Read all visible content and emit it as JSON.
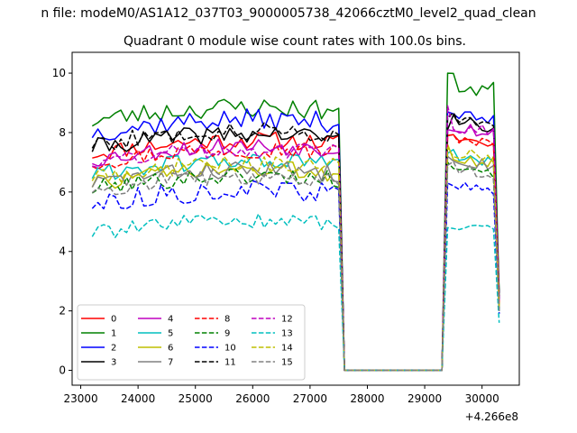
{
  "suptitle": "n file: modeM0/AS1A12_037T03_9000005738_42066cztM0_level2_quad_clean",
  "chart_data": {
    "type": "line",
    "title": "Quadrant 0 module wise count rates with 100.0s bins.",
    "xlabel": "",
    "ylabel": "",
    "x_offset_label": "+4.266e8",
    "xlim": [
      22850,
      30650
    ],
    "ylim": [
      -0.5,
      10.7
    ],
    "x_ticks": [
      23000,
      24000,
      25000,
      26000,
      27000,
      28000,
      29000,
      30000
    ],
    "x_tick_labels": [
      "23000",
      "24000",
      "25000",
      "26000",
      "27000",
      "28000",
      "29000",
      "30000"
    ],
    "y_ticks": [
      0,
      2,
      4,
      6,
      8,
      10
    ],
    "y_tick_labels": [
      "0",
      "2",
      "4",
      "6",
      "8",
      "10"
    ],
    "grid": false,
    "legend": {
      "placement": "lower-left",
      "columns": 4
    },
    "segments": {
      "x1_start": 23200,
      "x1_end": 27500,
      "x1_step": 100,
      "gap_x": [
        27600,
        27700,
        27800,
        27900,
        28000,
        28100,
        28200,
        28300,
        28400,
        28500,
        28600,
        28700,
        28800,
        28900,
        29000,
        29100,
        29200,
        29300
      ],
      "x2_start": 29400,
      "x2_end": 30300,
      "x2_step": 100,
      "gap_value": 0
    },
    "series": [
      {
        "name": "0",
        "color": "#ff0000",
        "dash": "solid",
        "level1": 7.3,
        "amp1": 0.3,
        "level2": 7.9,
        "amp2": 0.15,
        "peak_first": 7.9,
        "peak_last": 2.2,
        "seed": 11
      },
      {
        "name": "1",
        "color": "#008000",
        "dash": "solid",
        "level1": 8.4,
        "amp1": 0.35,
        "level2": 9.7,
        "amp2": 0.35,
        "peak_first": 10.0,
        "peak_last": 2.5,
        "seed": 23
      },
      {
        "name": "2",
        "color": "#0000ff",
        "dash": "solid",
        "level1": 8.0,
        "amp1": 0.35,
        "level2": 8.7,
        "amp2": 0.2,
        "peak_first": 8.7,
        "peak_last": 2.0,
        "seed": 37
      },
      {
        "name": "3",
        "color": "#000000",
        "dash": "solid",
        "level1": 7.5,
        "amp1": 0.3,
        "level2": 8.5,
        "amp2": 0.2,
        "peak_first": 8.1,
        "peak_last": 2.6,
        "seed": 41
      },
      {
        "name": "4",
        "color": "#bf00bf",
        "dash": "solid",
        "level1": 7.1,
        "amp1": 0.3,
        "level2": 8.3,
        "amp2": 0.25,
        "peak_first": 8.1,
        "peak_last": 2.3,
        "seed": 53
      },
      {
        "name": "5",
        "color": "#00bfbf",
        "dash": "solid",
        "level1": 6.6,
        "amp1": 0.3,
        "level2": 7.3,
        "amp2": 0.2,
        "peak_first": 7.3,
        "peak_last": 2.0,
        "seed": 61
      },
      {
        "name": "6",
        "color": "#bfbf00",
        "dash": "solid",
        "level1": 6.3,
        "amp1": 0.3,
        "level2": 7.3,
        "amp2": 0.25,
        "peak_first": 7.6,
        "peak_last": 2.2,
        "seed": 73
      },
      {
        "name": "7",
        "color": "#808080",
        "dash": "solid",
        "level1": 6.3,
        "amp1": 0.3,
        "level2": 7.2,
        "amp2": 0.2,
        "peak_first": 7.2,
        "peak_last": 2.1,
        "seed": 83
      },
      {
        "name": "8",
        "color": "#ff0000",
        "dash": "dashed",
        "level1": 7.0,
        "amp1": 0.3,
        "level2": 7.9,
        "amp2": 0.2,
        "peak_first": 7.9,
        "peak_last": 2.2,
        "seed": 97
      },
      {
        "name": "9",
        "color": "#008000",
        "dash": "dashed",
        "level1": 6.1,
        "amp1": 0.3,
        "level2": 7.0,
        "amp2": 0.2,
        "peak_first": 7.0,
        "peak_last": 2.0,
        "seed": 101
      },
      {
        "name": "10",
        "color": "#0000ff",
        "dash": "dashed",
        "level1": 5.6,
        "amp1": 0.35,
        "level2": 6.3,
        "amp2": 0.15,
        "peak_first": 6.3,
        "peak_last": 1.9,
        "seed": 113
      },
      {
        "name": "11",
        "color": "#000000",
        "dash": "dashed",
        "level1": 7.6,
        "amp1": 0.3,
        "level2": 8.6,
        "amp2": 0.2,
        "peak_first": 8.5,
        "peak_last": 2.4,
        "seed": 127
      },
      {
        "name": "12",
        "color": "#bf00bf",
        "dash": "dashed",
        "level1": 7.0,
        "amp1": 0.3,
        "level2": 8.3,
        "amp2": 0.25,
        "peak_first": 8.9,
        "peak_last": 2.3,
        "seed": 131
      },
      {
        "name": "13",
        "color": "#00bfbf",
        "dash": "dashed",
        "level1": 4.6,
        "amp1": 0.25,
        "level2": 5.0,
        "amp2": 0.2,
        "peak_first": 4.8,
        "peak_last": 1.6,
        "seed": 139
      },
      {
        "name": "14",
        "color": "#bfbf00",
        "dash": "dashed",
        "level1": 6.5,
        "amp1": 0.3,
        "level2": 7.4,
        "amp2": 0.2,
        "peak_first": 7.5,
        "peak_last": 2.1,
        "seed": 149
      },
      {
        "name": "15",
        "color": "#808080",
        "dash": "dashed",
        "level1": 6.1,
        "amp1": 0.3,
        "level2": 6.9,
        "amp2": 0.2,
        "peak_first": 6.9,
        "peak_last": 2.0,
        "seed": 157
      }
    ]
  }
}
